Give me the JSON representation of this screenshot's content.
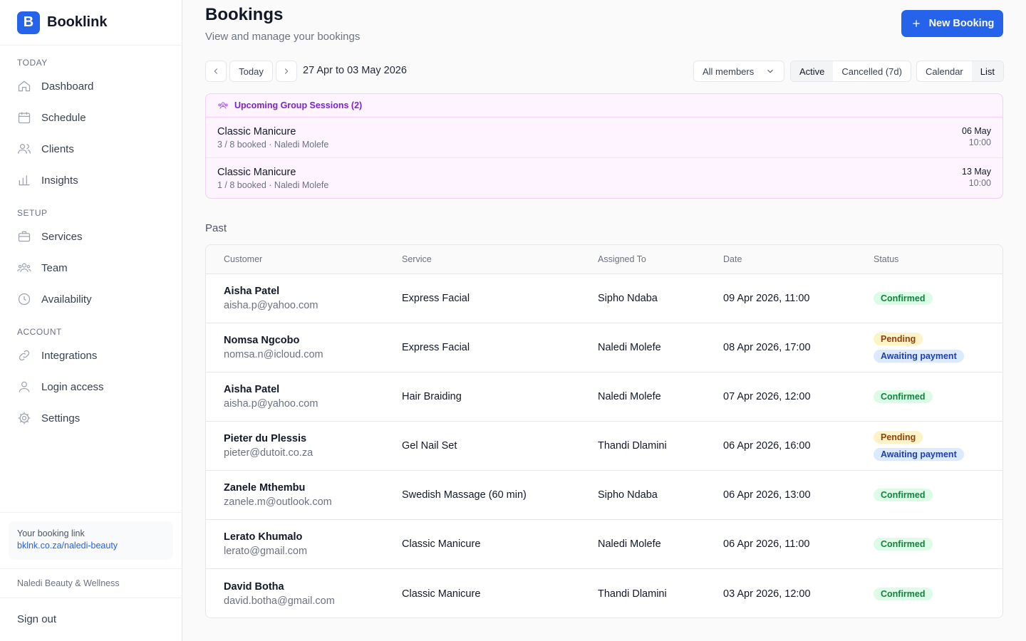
{
  "sidebar": {
    "brand": {
      "logo": "B",
      "name": "Booklink"
    },
    "sections": [
      {
        "title": "TODAY",
        "items": [
          "Dashboard",
          "Schedule",
          "Clients",
          "Insights"
        ]
      },
      {
        "title": "SETUP",
        "items": [
          "Services",
          "Team",
          "Availability"
        ]
      },
      {
        "title": "ACCOUNT",
        "items": [
          "Integrations",
          "Login access",
          "Settings"
        ]
      }
    ],
    "booking_link": {
      "label": "Your booking link",
      "url": "bklnk.co.za/naledi-beauty"
    },
    "business": "Naledi Beauty & Wellness",
    "sign_out": "Sign out"
  },
  "header": {
    "title": "Bookings",
    "subtitle": "View and manage your bookings",
    "new_button": "New Booking"
  },
  "toolbar": {
    "today": "Today",
    "range": "27 Apr to 03 May 2026",
    "members": "All members",
    "status_tabs": [
      "Active",
      "Cancelled (7d)"
    ],
    "view_tabs": [
      "Calendar",
      "List"
    ]
  },
  "group_sessions": {
    "title": "Upcoming Group Sessions (2)",
    "items": [
      {
        "name": "Classic Manicure",
        "detail": "3 / 8 booked · Naledi Molefe",
        "date": "06 May",
        "time": "10:00"
      },
      {
        "name": "Classic Manicure",
        "detail": "1 / 8 booked · Naledi Molefe",
        "date": "13 May",
        "time": "10:00"
      }
    ]
  },
  "past": {
    "title": "Past",
    "columns": [
      "Customer",
      "Service",
      "Assigned To",
      "Date",
      "Status"
    ],
    "rows": [
      {
        "customer": "Aisha Patel",
        "email": "aisha.p@yahoo.com",
        "service": "Express Facial",
        "assigned": "Sipho Ndaba",
        "date": "09 Apr 2026, 11:00",
        "status": [
          {
            "label": "Confirmed",
            "color": "#15803d",
            "background": "#dcfce7"
          }
        ]
      },
      {
        "customer": "Nomsa Ngcobo",
        "email": "nomsa.n@icloud.com",
        "service": "Express Facial",
        "assigned": "Naledi Molefe",
        "date": "08 Apr 2026, 17:00",
        "status": [
          {
            "label": "Pending",
            "color": "#92400e",
            "background": "#fef3c7"
          },
          {
            "label": "Awaiting payment",
            "color": "#1e40af",
            "background": "#dbeafe"
          }
        ]
      },
      {
        "customer": "Aisha Patel",
        "email": "aisha.p@yahoo.com",
        "service": "Hair Braiding",
        "assigned": "Naledi Molefe",
        "date": "07 Apr 2026, 12:00",
        "status": [
          {
            "label": "Confirmed",
            "color": "#15803d",
            "background": "#dcfce7"
          }
        ]
      },
      {
        "customer": "Pieter du Plessis",
        "email": "pieter@dutoit.co.za",
        "service": "Gel Nail Set",
        "assigned": "Thandi Dlamini",
        "date": "06 Apr 2026, 16:00",
        "status": [
          {
            "label": "Pending",
            "color": "#92400e",
            "background": "#fef3c7"
          },
          {
            "label": "Awaiting payment",
            "color": "#1e40af",
            "background": "#dbeafe"
          }
        ]
      },
      {
        "customer": "Zanele Mthembu",
        "email": "zanele.m@outlook.com",
        "service": "Swedish Massage (60 min)",
        "assigned": "Sipho Ndaba",
        "date": "06 Apr 2026, 13:00",
        "status": [
          {
            "label": "Confirmed",
            "color": "#15803d",
            "background": "#dcfce7"
          }
        ]
      },
      {
        "customer": "Lerato Khumalo",
        "email": "lerato@gmail.com",
        "service": "Classic Manicure",
        "assigned": "Naledi Molefe",
        "date": "06 Apr 2026, 11:00",
        "status": [
          {
            "label": "Confirmed",
            "color": "#15803d",
            "background": "#dcfce7"
          }
        ]
      },
      {
        "customer": "David Botha",
        "email": "david.botha@gmail.com",
        "service": "Classic Manicure",
        "assigned": "Thandi Dlamini",
        "date": "03 Apr 2026, 12:00",
        "status": [
          {
            "label": "Confirmed",
            "color": "#15803d",
            "background": "#dcfce7"
          }
        ]
      }
    ]
  }
}
